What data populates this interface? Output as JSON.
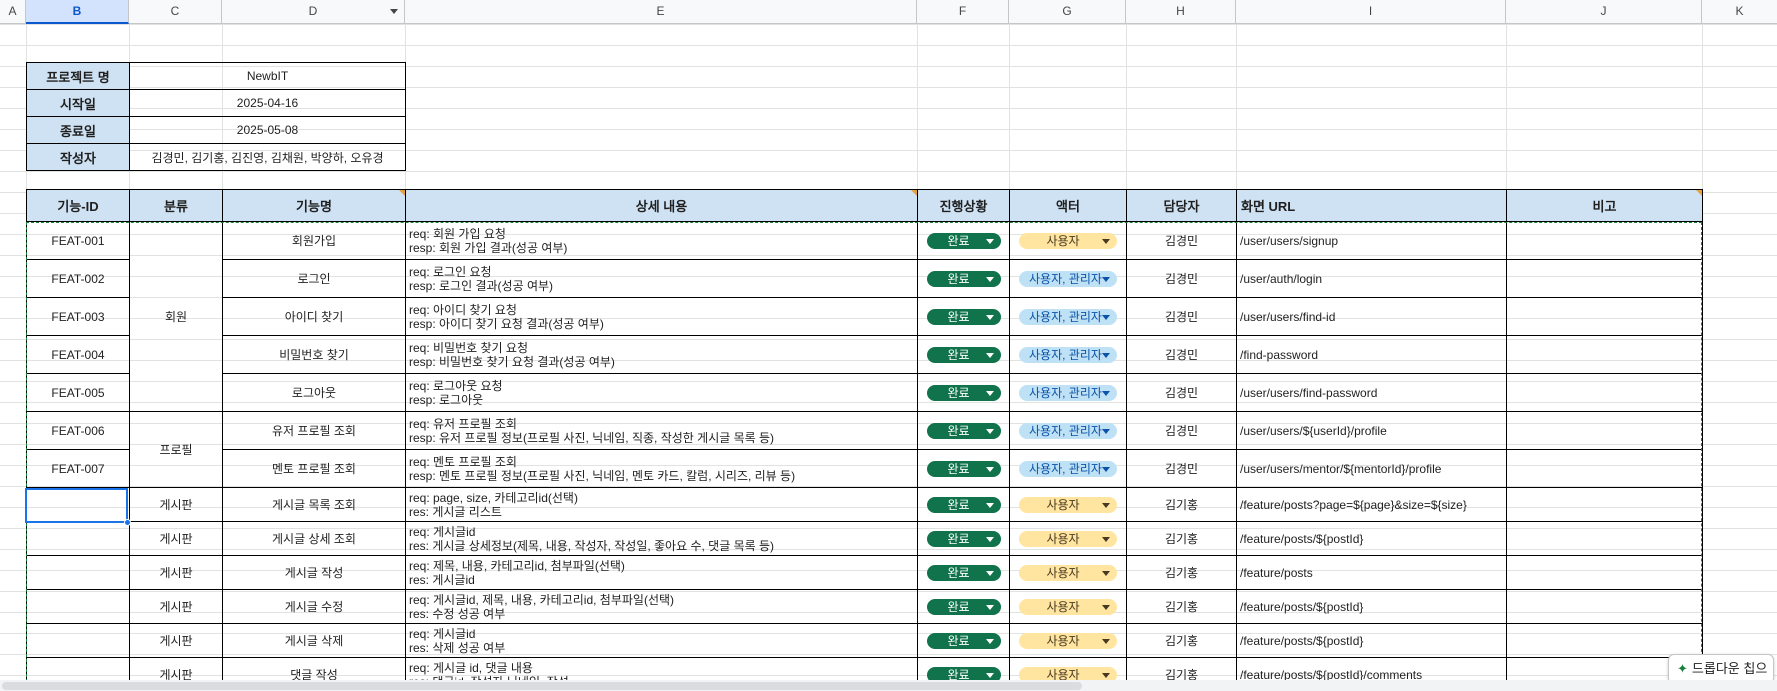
{
  "columns": [
    "A",
    "B",
    "C",
    "D",
    "E",
    "F",
    "G",
    "H",
    "I",
    "J",
    "K"
  ],
  "selected_column": "B",
  "info": {
    "rows": [
      {
        "label": "프로젝트 명",
        "value": "NewbIT"
      },
      {
        "label": "시작일",
        "value": "2025-04-16"
      },
      {
        "label": "종료일",
        "value": "2025-05-08"
      },
      {
        "label": "작성자",
        "value": "김경민, 김기홍, 김진영, 김채원, 박양하, 오유경"
      }
    ]
  },
  "table": {
    "headers": [
      "기능-ID",
      "분류",
      "기능명",
      "상세 내용",
      "진행상황",
      "액터",
      "담당자",
      "화면 URL",
      "비고"
    ],
    "rows": [
      {
        "id": "FEAT-001",
        "cat": "",
        "name": "회원가입",
        "d1": "req: 회원 가입 요청",
        "d2": "resp: 회원 가입 결과(성공 여부)",
        "status": "완료",
        "actor": "사용자",
        "actor_type": "user",
        "owner": "김경민",
        "url": "/user/users/signup",
        "note": ""
      },
      {
        "id": "FEAT-002",
        "cat": "",
        "name": "로그인",
        "d1": "req: 로그인 요청",
        "d2": "resp: 로그인 결과(성공 여부)",
        "status": "완료",
        "actor": "사용자, 관리자",
        "actor_type": "both",
        "owner": "김경민",
        "url": "/user/auth/login",
        "note": ""
      },
      {
        "id": "FEAT-003",
        "cat": "회원",
        "name": "아이디 찾기",
        "d1": "req: 아이디 찾기 요청",
        "d2": "resp: 아이디 찾기 요청 결과(성공 여부)",
        "status": "완료",
        "actor": "사용자, 관리자",
        "actor_type": "both",
        "owner": "김경민",
        "url": "/user/users/find-id",
        "note": ""
      },
      {
        "id": "FEAT-004",
        "cat": "",
        "name": "비밀번호 찾기",
        "d1": "req: 비밀번호 찾기 요청",
        "d2": "resp: 비밀번호 찾기 요청 결과(성공 여부)",
        "status": "완료",
        "actor": "사용자, 관리자",
        "actor_type": "both",
        "owner": "김경민",
        "url": "/find-password",
        "note": ""
      },
      {
        "id": "FEAT-005",
        "cat": "",
        "name": "로그아웃",
        "d1": "req: 로그아웃 요청",
        "d2": "resp: 로그아웃",
        "status": "완료",
        "actor": "사용자, 관리자",
        "actor_type": "both",
        "owner": "김경민",
        "url": "/user/users/find-password",
        "note": ""
      },
      {
        "id": "FEAT-006",
        "cat": "",
        "name": "유저 프로필 조회",
        "d1": "req: 유저 프로필 조회",
        "d2": "resp: 유저 프로필 정보(프로필 사진, 닉네임, 직종, 작성한 게시글 목록 등)",
        "status": "완료",
        "actor": "사용자, 관리자",
        "actor_type": "both",
        "owner": "김경민",
        "url": "/user/users/${userId}/profile",
        "note": ""
      },
      {
        "id": "FEAT-007",
        "cat": "프로필",
        "name": "멘토 프로필 조회",
        "d1": "req: 멘토 프로필 조회",
        "d2": "resp: 멘토 프로필 정보(프로필 사진, 닉네임, 멘토 카드, 칼럼, 시리즈, 리뷰 등)",
        "status": "완료",
        "actor": "사용자, 관리자",
        "actor_type": "both",
        "owner": "김경민",
        "url": "/user/users/mentor/${mentorId}/profile",
        "note": ""
      },
      {
        "id": "",
        "cat": "게시판",
        "name": "게시글 목록 조회",
        "d1": "req: page, size, 카테고리id(선택)",
        "d2": "res: 게시글 리스트",
        "status": "완료",
        "actor": "사용자",
        "actor_type": "user",
        "owner": "김기홍",
        "url": "/feature/posts?page=${page}&size=${size}",
        "note": ""
      },
      {
        "id": "",
        "cat": "게시판",
        "name": "게시글 상세 조회",
        "d1": "req: 게시글id",
        "d2": "res: 게시글 상세정보(제목, 내용, 작성자, 작성일, 좋아요 수, 댓글 목록 등)",
        "status": "완료",
        "actor": "사용자",
        "actor_type": "user",
        "owner": "김기홍",
        "url": "/feature/posts/${postId}",
        "note": ""
      },
      {
        "id": "",
        "cat": "게시판",
        "name": "게시글 작성",
        "d1": "req: 제목, 내용, 카테고리id, 첨부파일(선택)",
        "d2": "res: 게시글id",
        "status": "완료",
        "actor": "사용자",
        "actor_type": "user",
        "owner": "김기홍",
        "url": "/feature/posts",
        "note": ""
      },
      {
        "id": "",
        "cat": "게시판",
        "name": "게시글 수정",
        "d1": "req: 게시글id, 제목, 내용, 카테고리id, 첨부파일(선택)",
        "d2": "res: 수정 성공 여부",
        "status": "완료",
        "actor": "사용자",
        "actor_type": "user",
        "owner": "김기홍",
        "url": "/feature/posts/${postId}",
        "note": ""
      },
      {
        "id": "",
        "cat": "게시판",
        "name": "게시글 삭제",
        "d1": "req: 게시글id",
        "d2": "res: 삭제 성공 여부",
        "status": "완료",
        "actor": "사용자",
        "actor_type": "user",
        "owner": "김기홍",
        "url": "/feature/posts/${postId}",
        "note": ""
      },
      {
        "id": "",
        "cat": "게시판",
        "name": "댓글 작성",
        "d1": "req: 게시글 id, 댓글 내용",
        "d2": "res: 댓글id, 작성자 닉네임, 작성",
        "status": "완료",
        "actor": "사용자",
        "actor_type": "user",
        "owner": "김기홍",
        "url": "/feature/posts/${postId}/comments",
        "note": ""
      }
    ]
  },
  "smart_chip": {
    "label": "드롭다운 칩으"
  },
  "icons": {
    "sparkle": "sparkle-icon",
    "dropdown": "chevron-down-icon"
  },
  "colors": {
    "header_fill": "#cfe2f3",
    "status_done": "#11734b",
    "actor_user": "#ffe5a0",
    "actor_both": "#bfe1f6",
    "selection": "#1a73e8"
  }
}
